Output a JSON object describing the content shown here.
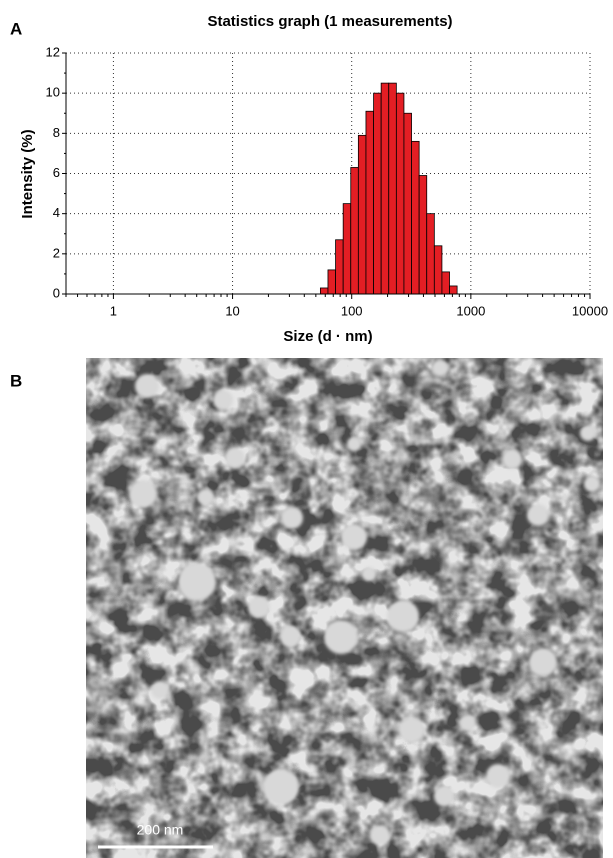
{
  "chart_data": {
    "type": "histogram",
    "title": "Statistics graph (1 measurements)",
    "x_label": "Size (d · nm)",
    "y_label": "Intensity (%)",
    "bins": [
      54.6,
      63.2,
      73.2,
      84.8,
      98.2,
      113.7,
      131.7,
      152.6,
      176.7,
      204.6,
      237.0,
      274.4,
      317.8,
      368.1,
      426.3,
      493.7,
      571.7,
      662.1,
      766.8
    ],
    "values": [
      0.3,
      1.2,
      2.7,
      4.5,
      6.3,
      7.9,
      9.1,
      10.0,
      10.5,
      10.5,
      10.0,
      9.0,
      7.6,
      5.9,
      4.0,
      2.4,
      1.1,
      0.4
    ],
    "color": "#e31e24",
    "x_log": true,
    "grid": true,
    "xlim": [
      0.4,
      10000
    ],
    "xticks": [
      1,
      10,
      100,
      1000,
      10000
    ],
    "ylim": [
      0,
      12
    ],
    "yticks": [
      0,
      2,
      4,
      6,
      8,
      10,
      12
    ]
  },
  "panel_labels": [
    "A",
    "B"
  ],
  "image": {
    "scale_bar": "200 nm"
  }
}
